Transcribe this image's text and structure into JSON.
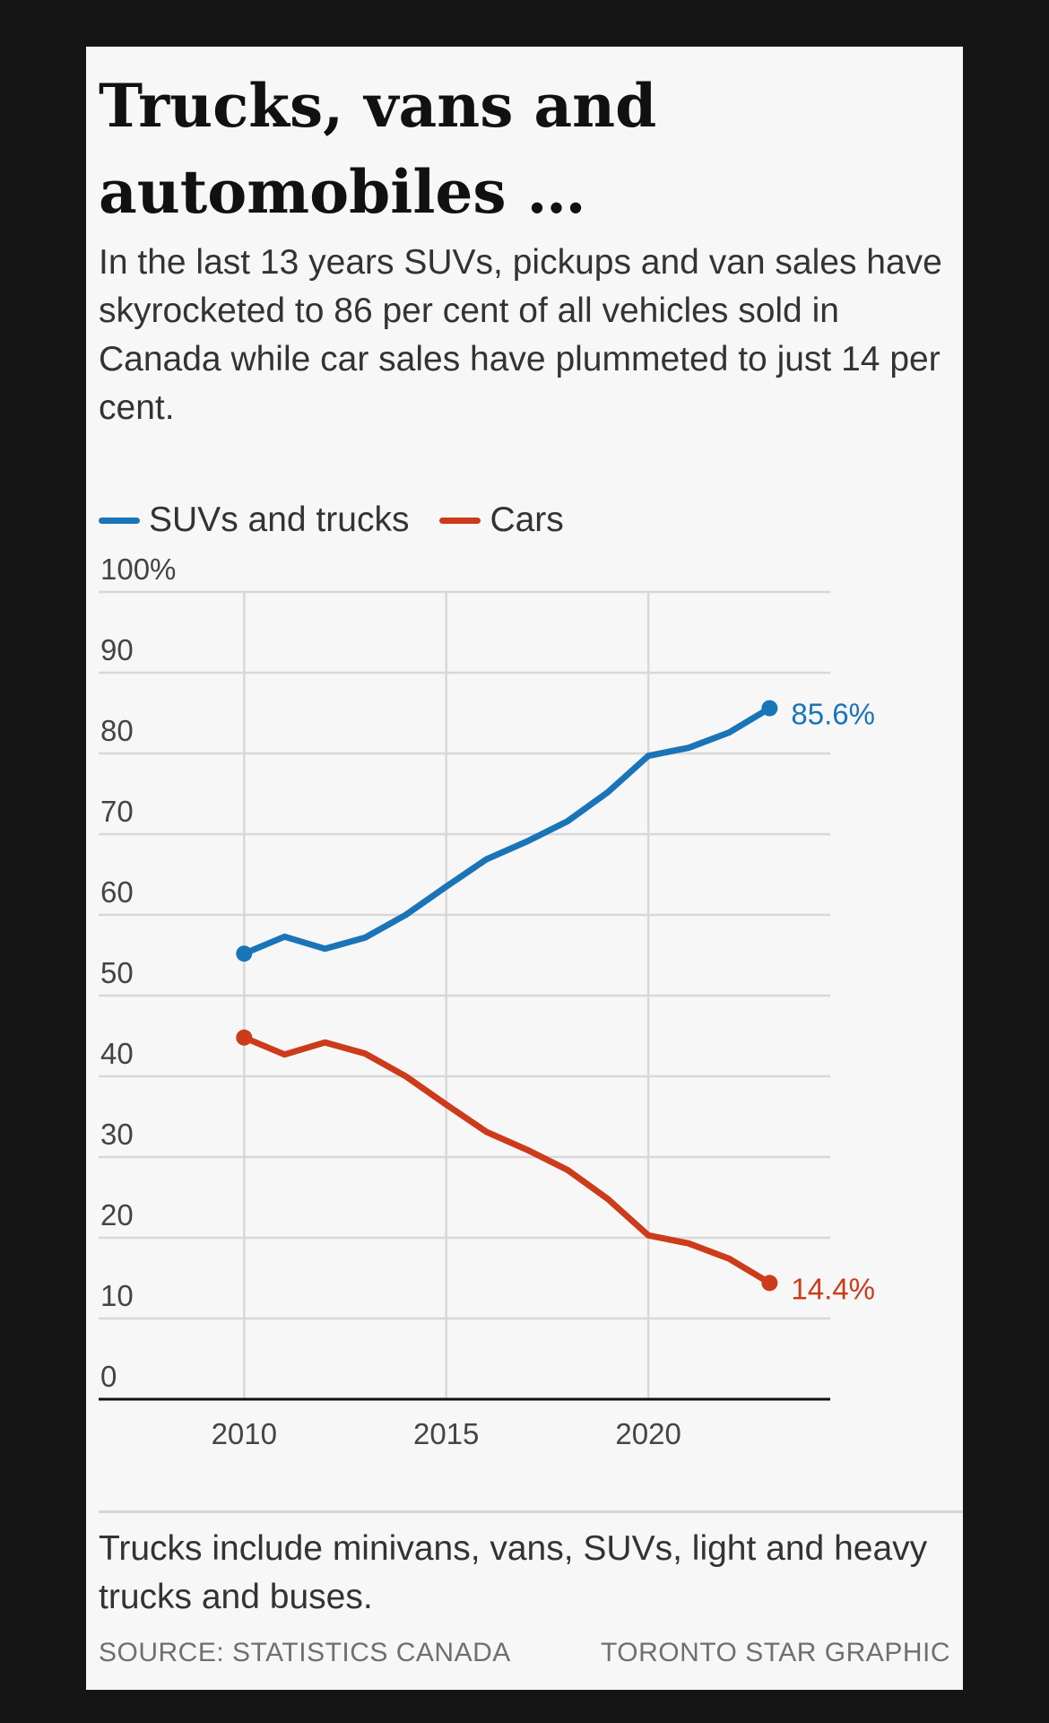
{
  "title": "Trucks, vans and automobiles …",
  "subtitle": "In the last 13 years SUVs, pickups and van sales have skyrocketed to 86 per cent of all vehicles sold in Canada while car sales have plummeted to just 14 per cent.",
  "note": "Trucks include minivans, vans, SUVs, light and heavy trucks and buses.",
  "source": "SOURCE: STATISTICS CANADA",
  "credit": "TORONTO STAR GRAPHIC",
  "colors": {
    "suv": "#1a74b8",
    "cars": "#cc3b1a"
  },
  "chart_data": {
    "type": "line",
    "title": "Trucks, vans and automobiles …",
    "xlabel": "",
    "ylabel": "",
    "ylim": [
      0,
      100
    ],
    "xlim": [
      2006.4,
      2024.5
    ],
    "yticks": [
      0,
      10,
      20,
      30,
      40,
      50,
      60,
      70,
      80,
      90,
      100
    ],
    "ytick_labels": [
      "0",
      "10",
      "20",
      "30",
      "40",
      "50",
      "60",
      "70",
      "80",
      "90",
      "100%"
    ],
    "xticks": [
      2010,
      2015,
      2020
    ],
    "xtick_labels": [
      "2010",
      "2015",
      "2020"
    ],
    "legend_position": "top-left",
    "series": [
      {
        "name": "SUVs and trucks",
        "color": "#1a74b8",
        "x": [
          2010,
          2011,
          2012,
          2013,
          2014,
          2015,
          2016,
          2017,
          2018,
          2019,
          2020,
          2021,
          2022,
          2023
        ],
        "values": [
          55.2,
          57.3,
          55.8,
          57.2,
          60.0,
          63.5,
          66.9,
          69.1,
          71.6,
          75.2,
          79.7,
          80.7,
          82.6,
          85.6
        ],
        "end_label": "85.6%"
      },
      {
        "name": "Cars",
        "color": "#cc3b1a",
        "x": [
          2010,
          2011,
          2012,
          2013,
          2014,
          2015,
          2016,
          2017,
          2018,
          2019,
          2020,
          2021,
          2022,
          2023
        ],
        "values": [
          44.8,
          42.7,
          44.2,
          42.8,
          40.0,
          36.5,
          33.1,
          30.9,
          28.4,
          24.8,
          20.3,
          19.3,
          17.4,
          14.4
        ],
        "end_label": "14.4%"
      }
    ]
  }
}
